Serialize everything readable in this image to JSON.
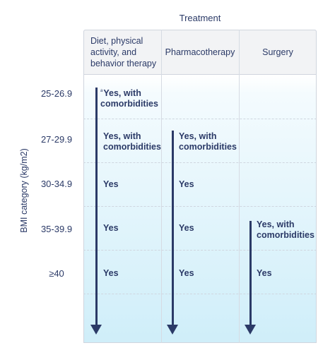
{
  "treatment_title": "Treatment",
  "y_axis_title": "BMI category (kg/m2)",
  "columns": [
    {
      "label": "Diet, physical activity, and behavior therapy"
    },
    {
      "label": "Pharmacotherapy"
    },
    {
      "label": "Surgery"
    }
  ],
  "rows": [
    {
      "bmi": "25-26.9",
      "cells": [
        "Yes, with comorbidities",
        "",
        ""
      ]
    },
    {
      "bmi": "27-29.9",
      "cells": [
        "Yes, with comorbidities",
        "Yes, with comorbidities",
        ""
      ]
    },
    {
      "bmi": "30-34.9",
      "cells": [
        "Yes",
        "Yes",
        ""
      ]
    },
    {
      "bmi": "35-39.9",
      "cells": [
        "Yes",
        "Yes",
        "Yes, with comorbidities"
      ]
    },
    {
      "bmi": "≥40",
      "cells": [
        "Yes",
        "Yes",
        "Yes"
      ]
    }
  ],
  "footnote_marker": "a"
}
